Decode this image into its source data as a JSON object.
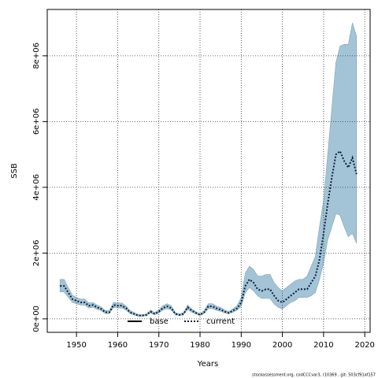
{
  "chart_data": {
    "type": "band-line",
    "ylabel": "SSB",
    "xlabel": "Years",
    "footnote": "stockassessment.org, codCCCvar3, r10369 , git: 503cf91af157",
    "x": [
      1946,
      1947,
      1948,
      1949,
      1950,
      1951,
      1952,
      1953,
      1954,
      1955,
      1956,
      1957,
      1958,
      1959,
      1960,
      1961,
      1962,
      1963,
      1964,
      1965,
      1966,
      1967,
      1968,
      1969,
      1970,
      1971,
      1972,
      1973,
      1974,
      1975,
      1976,
      1977,
      1978,
      1979,
      1980,
      1981,
      1982,
      1983,
      1984,
      1985,
      1986,
      1987,
      1988,
      1989,
      1990,
      1991,
      1992,
      1993,
      1994,
      1995,
      1996,
      1997,
      1998,
      1999,
      2000,
      2001,
      2002,
      2003,
      2004,
      2005,
      2006,
      2007,
      2008,
      2009,
      2010,
      2011,
      2012,
      2013,
      2014,
      2015,
      2016,
      2017,
      2018
    ],
    "band_color": "#a3c4d6",
    "band_upper": [
      1200000,
      1200000,
      950000,
      720000,
      650000,
      600000,
      600000,
      480000,
      500000,
      420000,
      360000,
      250000,
      250000,
      500000,
      480000,
      480000,
      400000,
      250000,
      190000,
      130000,
      130000,
      150000,
      270000,
      190000,
      270000,
      400000,
      460000,
      400000,
      190000,
      150000,
      190000,
      420000,
      300000,
      220000,
      150000,
      250000,
      460000,
      460000,
      390000,
      340000,
      270000,
      220000,
      310000,
      400000,
      650000,
      1400000,
      1600000,
      1500000,
      1300000,
      1300000,
      1350000,
      1350000,
      1100000,
      950000,
      850000,
      950000,
      1050000,
      1150000,
      1200000,
      1200000,
      1300000,
      1600000,
      1900000,
      2800000,
      3600000,
      5000000,
      6400000,
      7800000,
      8300000,
      8350000,
      8350000,
      9000000,
      8600000
    ],
    "band_lower": [
      820000,
      820000,
      660000,
      500000,
      460000,
      420000,
      420000,
      330000,
      350000,
      290000,
      250000,
      160000,
      160000,
      350000,
      330000,
      330000,
      270000,
      160000,
      120000,
      80000,
      80000,
      100000,
      180000,
      120000,
      180000,
      270000,
      310000,
      270000,
      120000,
      100000,
      120000,
      290000,
      200000,
      150000,
      100000,
      160000,
      310000,
      310000,
      260000,
      230000,
      180000,
      150000,
      200000,
      260000,
      380000,
      800000,
      950000,
      850000,
      700000,
      620000,
      620000,
      620000,
      450000,
      350000,
      300000,
      400000,
      500000,
      550000,
      650000,
      650000,
      650000,
      700000,
      800000,
      1200000,
      1700000,
      2400000,
      2800000,
      3200000,
      3150000,
      2800000,
      2500000,
      2600000,
      2300000
    ],
    "series": [
      {
        "name": "base",
        "color": "#000000",
        "style": "solid"
      },
      {
        "name": "current",
        "color": "#0b1f3a",
        "style": "dotted",
        "values": [
          1000000,
          1000000,
          800000,
          600000,
          550000,
          500000,
          500000,
          400000,
          420000,
          350000,
          300000,
          200000,
          200000,
          420000,
          400000,
          400000,
          330000,
          200000,
          150000,
          100000,
          100000,
          120000,
          220000,
          150000,
          220000,
          330000,
          380000,
          330000,
          150000,
          120000,
          150000,
          350000,
          250000,
          180000,
          120000,
          200000,
          380000,
          380000,
          320000,
          280000,
          220000,
          180000,
          250000,
          320000,
          500000,
          1000000,
          1200000,
          1100000,
          900000,
          850000,
          900000,
          900000,
          700000,
          550000,
          500000,
          600000,
          700000,
          800000,
          900000,
          900000,
          900000,
          1100000,
          1300000,
          1800000,
          2600000,
          3500000,
          4300000,
          5000000,
          5100000,
          4800000,
          4600000,
          4900000,
          4400000
        ]
      }
    ],
    "xlim": [
      1942.9,
      2021.3
    ],
    "xticks": [
      1950,
      1960,
      1970,
      1980,
      1990,
      2000,
      2010,
      2020
    ],
    "ylim": [
      -410000,
      9410000
    ],
    "yticks": [
      {
        "value": 0,
        "label": "0e+00"
      },
      {
        "value": 2000000,
        "label": "2e+06"
      },
      {
        "value": 4000000,
        "label": "4e+06"
      },
      {
        "value": 6000000,
        "label": "6e+06"
      },
      {
        "value": 8000000,
        "label": "8e+06"
      }
    ],
    "grid": true,
    "legend": "bottom"
  }
}
